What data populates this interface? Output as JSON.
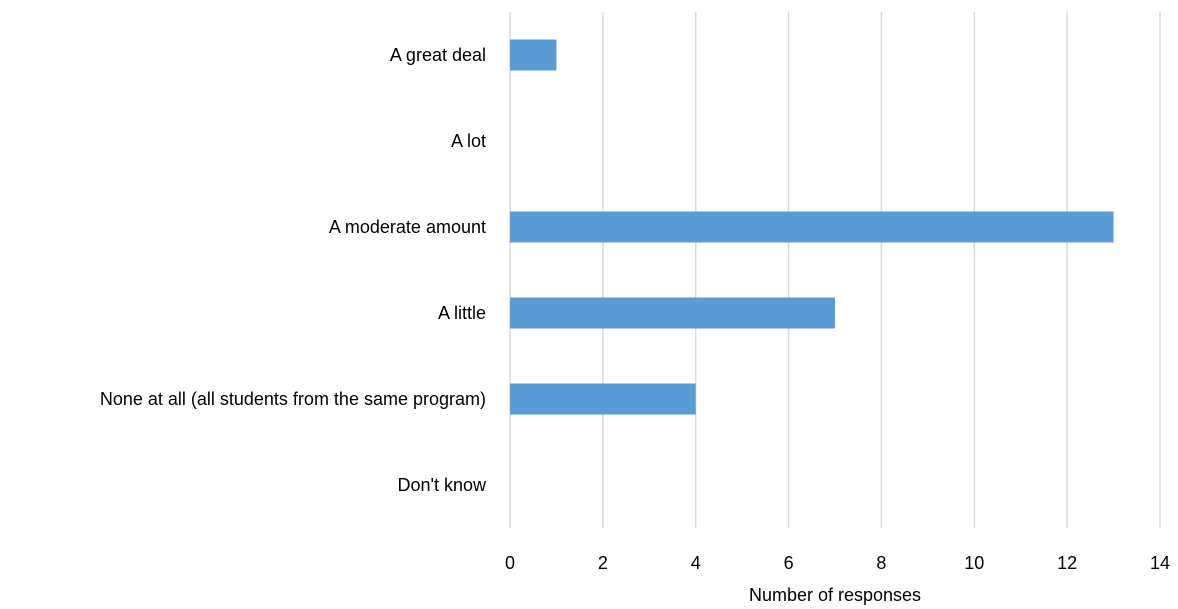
{
  "chart_data": {
    "type": "bar",
    "orientation": "horizontal",
    "categories": [
      "A great deal",
      "A lot",
      "A moderate amount",
      "A little",
      "None at all (all students from the same program)",
      "Don't know"
    ],
    "values": [
      1,
      0,
      13,
      7,
      4,
      0
    ],
    "xlabel": "Number of responses",
    "ylabel": "",
    "xlim": [
      0,
      14
    ],
    "xticks": [
      "0",
      "2",
      "4",
      "6",
      "8",
      "10",
      "12",
      "14"
    ],
    "grid": true,
    "legend": "none",
    "colors": {
      "bar": "#5b9bd5",
      "grid": "#d9d9d9",
      "text": "#000000"
    }
  }
}
